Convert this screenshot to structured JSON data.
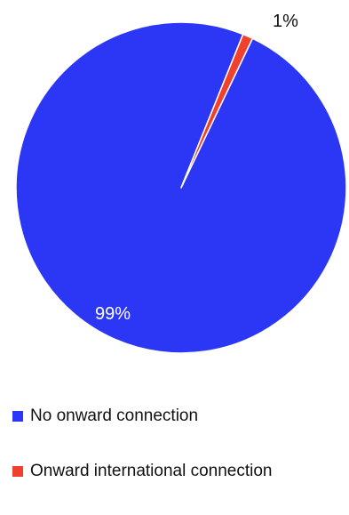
{
  "chart_data": {
    "type": "pie",
    "title": "",
    "slices": [
      {
        "label": "No onward connection",
        "value": 99,
        "value_label": "99%",
        "color": "#2b37f5"
      },
      {
        "label": "Onward international connection",
        "value": 1,
        "value_label": "1%",
        "color": "#f0402e"
      }
    ],
    "legend_placement": "bottom-left"
  }
}
